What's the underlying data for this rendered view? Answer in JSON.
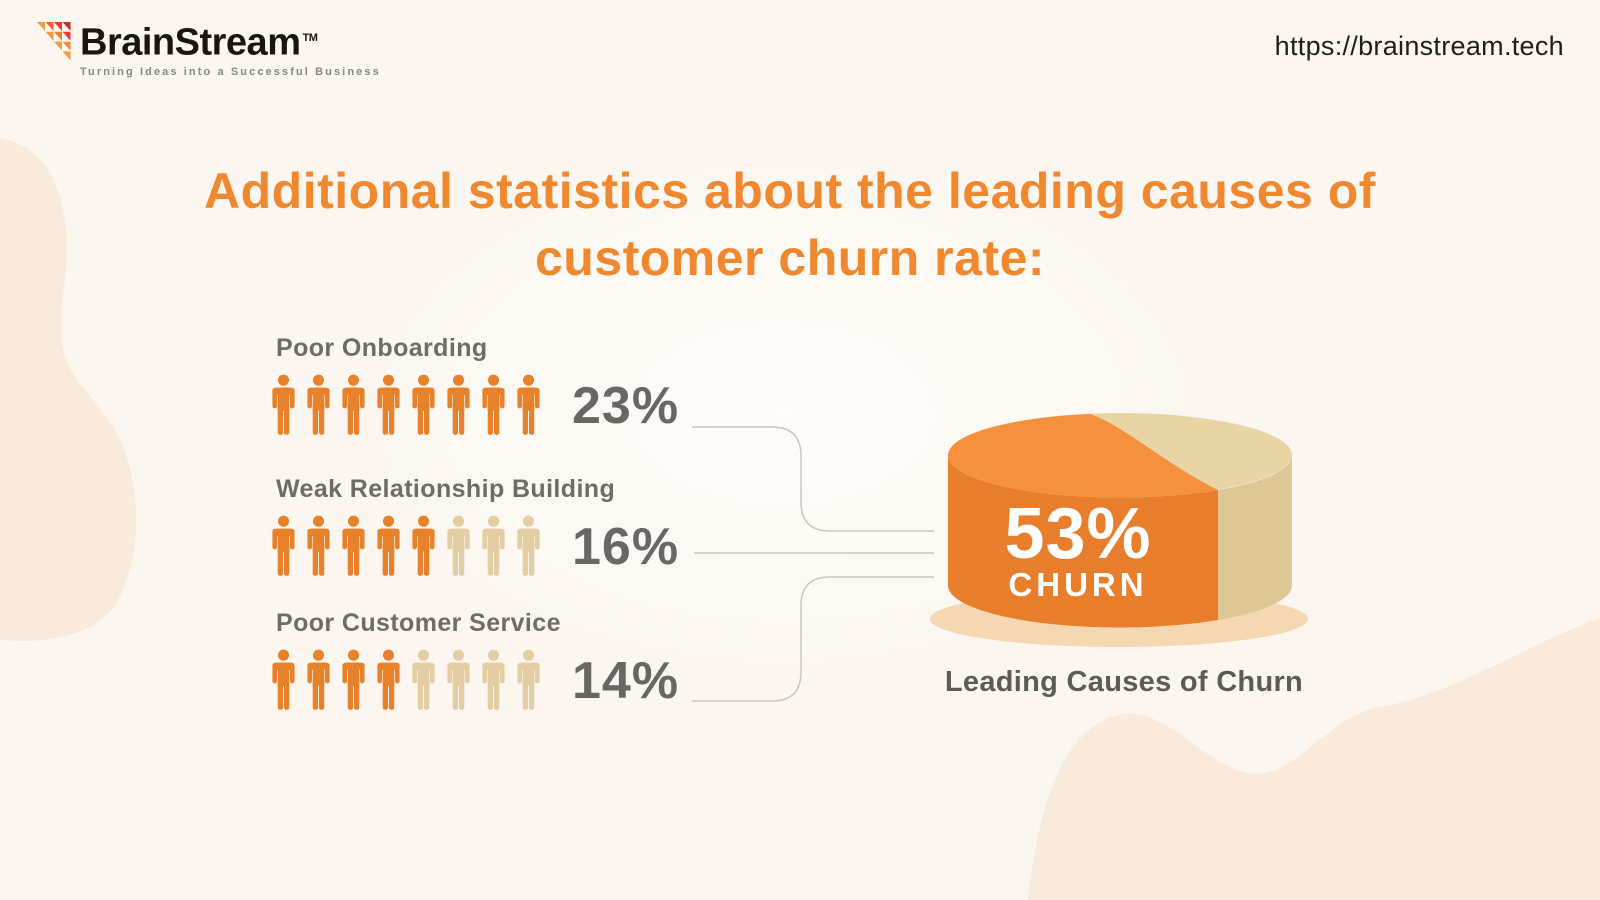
{
  "header": {
    "brand_name": "BrainStream",
    "brand_tm": "TM",
    "tagline": "Turning Ideas into a Successful Business",
    "url": "https://brainstream.tech"
  },
  "title": {
    "line1": "Additional statistics about the leading causes of",
    "line2": "customer churn rate:"
  },
  "chart_data": [
    {
      "type": "bar",
      "subtype": "pictograph",
      "title": "Additional statistics about the leading causes of customer churn rate:",
      "categories": [
        "Poor Onboarding",
        "Weak Relationship Building",
        "Poor Customer Service"
      ],
      "values": [
        23,
        16,
        14
      ],
      "value_labels": [
        "23%",
        "16%",
        "14%"
      ],
      "unit_icons_total": [
        8,
        8,
        8
      ],
      "unit_icons_filled": [
        8,
        5,
        4
      ],
      "unit_icon": "person-icon",
      "grid": false,
      "legend_position": "none"
    },
    {
      "type": "pie",
      "style": "3d-cylinder",
      "title": "Leading Causes of Churn",
      "center_label_line1": "53%",
      "center_label_line2": "CHURN",
      "slices": [
        {
          "label": "53% CHURN",
          "value": 53
        },
        {
          "label": "",
          "value": 47
        }
      ]
    }
  ],
  "colors": {
    "accent_title": "#F0882F",
    "person_filled": "#E8822A",
    "person_empty": "#E3CDA3",
    "pie_top_orange": "#F4903E",
    "pie_side_orange": "#E87E2B",
    "pie_top_beige": "#E8D4A5",
    "pie_side_beige": "#DCC795",
    "plate": "#F5D8B2",
    "connector": "#CBC6C1"
  }
}
